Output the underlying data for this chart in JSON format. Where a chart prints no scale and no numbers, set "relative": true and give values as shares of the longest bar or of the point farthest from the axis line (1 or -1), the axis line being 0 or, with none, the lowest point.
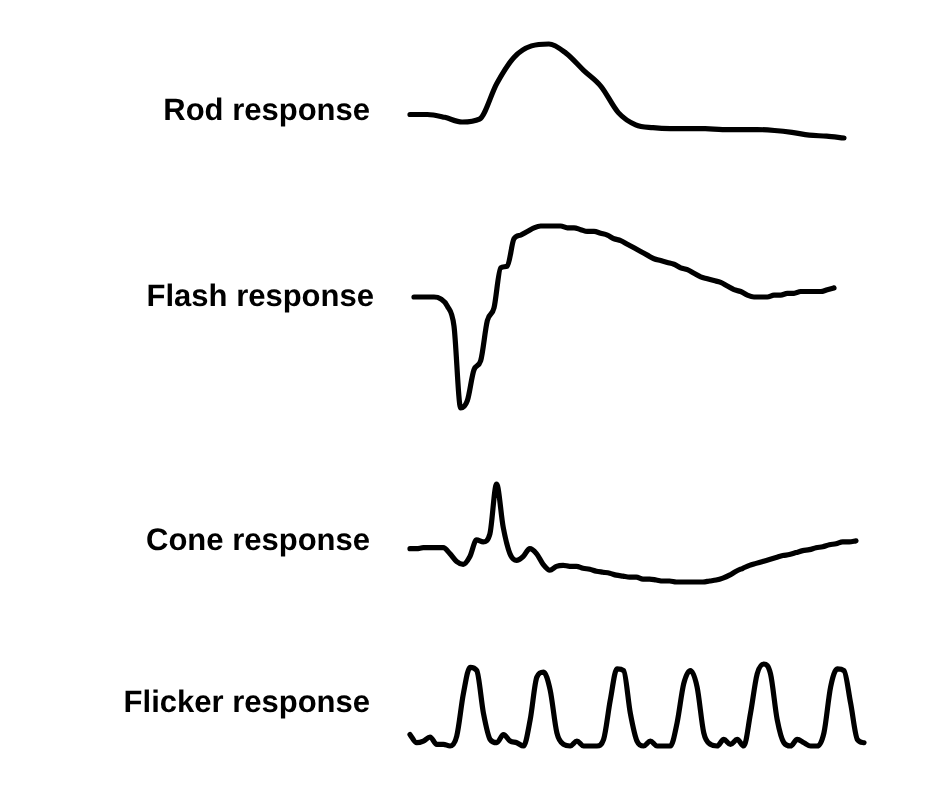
{
  "chart_data": [
    {
      "type": "line",
      "title": "Rod response",
      "relative": true,
      "color": "#000000",
      "categories": [
        null,
        null,
        null,
        null,
        null,
        null,
        null,
        null,
        null,
        null,
        null,
        null,
        null,
        null,
        null,
        null,
        null,
        null,
        null,
        null,
        null,
        null,
        null,
        null,
        null,
        null
      ],
      "values": [
        0.25,
        0.25,
        0.22,
        0.17,
        0.2,
        0.58,
        0.86,
        0.98,
        1,
        0.9,
        0.72,
        0.55,
        0.27,
        0.14,
        0.11,
        0.1,
        0.1,
        0.1,
        0.09,
        0.09,
        0.09,
        0.08,
        0.06,
        0.03,
        0.02,
        0
      ]
    },
    {
      "type": "line",
      "title": "Flash response",
      "relative": true,
      "color": "#000000",
      "categories": [
        null,
        null,
        null,
        null,
        null,
        null,
        null,
        null,
        null,
        null,
        null,
        null,
        null,
        null,
        null,
        null,
        null,
        null,
        null,
        null,
        null,
        null,
        null,
        null,
        null,
        null,
        null,
        null,
        null,
        null,
        null,
        null,
        null,
        null,
        null,
        null,
        null,
        null,
        null,
        null,
        null,
        null,
        null,
        null,
        null,
        null,
        null,
        null,
        null,
        null,
        null,
        null,
        null,
        null,
        null,
        null,
        null,
        null,
        null,
        null,
        null,
        null,
        null,
        null
      ],
      "values": [
        0.61,
        0.61,
        0.61,
        0.61,
        0.6,
        0.56,
        0.45,
        0,
        0.04,
        0.21,
        0.26,
        0.48,
        0.55,
        0.77,
        0.78,
        0.93,
        0.95,
        0.97,
        0.99,
        1,
        1,
        1,
        1,
        0.99,
        0.99,
        0.98,
        0.97,
        0.97,
        0.96,
        0.95,
        0.93,
        0.92,
        0.9,
        0.88,
        0.86,
        0.84,
        0.82,
        0.81,
        0.8,
        0.79,
        0.77,
        0.76,
        0.74,
        0.72,
        0.71,
        0.7,
        0.69,
        0.67,
        0.65,
        0.64,
        0.62,
        0.61,
        0.61,
        0.61,
        0.62,
        0.62,
        0.63,
        0.63,
        0.64,
        0.64,
        0.64,
        0.64,
        0.65,
        0.66
      ]
    },
    {
      "type": "line",
      "title": "Cone response",
      "relative": true,
      "color": "#000000",
      "categories": [
        null,
        null,
        null,
        null,
        null,
        null,
        null,
        null,
        null,
        null,
        null,
        null,
        null,
        null,
        null,
        null,
        null,
        null,
        null,
        null,
        null,
        null,
        null,
        null,
        null,
        null,
        null,
        null,
        null,
        null,
        null,
        null,
        null,
        null,
        null,
        null,
        null,
        null,
        null,
        null,
        null,
        null,
        null,
        null,
        null,
        null,
        null,
        null,
        null,
        null,
        null,
        null,
        null,
        null,
        null,
        null,
        null,
        null,
        null,
        null,
        null,
        null,
        null,
        null,
        null,
        null,
        null,
        null
      ],
      "values": [
        0.34,
        0.34,
        0.35,
        0.35,
        0.35,
        0.35,
        0.29,
        0.21,
        0.18,
        0.26,
        0.43,
        0.41,
        0.49,
        1,
        0.56,
        0.29,
        0.22,
        0.26,
        0.34,
        0.29,
        0.18,
        0.12,
        0.16,
        0.17,
        0.16,
        0.16,
        0.14,
        0.13,
        0.11,
        0.1,
        0.09,
        0.07,
        0.06,
        0.05,
        0.05,
        0.03,
        0.03,
        0.02,
        0.01,
        0.01,
        0,
        0,
        0,
        0,
        0,
        0.01,
        0.02,
        0.04,
        0.07,
        0.11,
        0.14,
        0.17,
        0.19,
        0.21,
        0.23,
        0.25,
        0.27,
        0.28,
        0.3,
        0.32,
        0.33,
        0.35,
        0.36,
        0.38,
        0.39,
        0.41,
        0.41,
        0.42
      ]
    },
    {
      "type": "line",
      "title": "Flicker response",
      "relative": true,
      "color": "#000000",
      "categories": [
        null,
        null,
        null,
        null,
        null,
        null,
        null,
        null,
        null,
        null,
        null,
        null,
        null,
        null,
        null,
        null,
        null,
        null,
        null,
        null,
        null,
        null,
        null,
        null,
        null,
        null,
        null,
        null,
        null,
        null,
        null,
        null,
        null,
        null,
        null,
        null,
        null,
        null,
        null,
        null,
        null,
        null,
        null,
        null,
        null,
        null,
        null,
        null,
        null,
        null,
        null,
        null,
        null,
        null,
        null,
        null,
        null,
        null,
        null,
        null,
        null,
        null,
        null,
        null,
        null,
        null,
        null,
        null,
        null
      ],
      "values": [
        0.14,
        0.04,
        0.06,
        0.11,
        0.02,
        0.02,
        0,
        0.12,
        0.64,
        0.96,
        0.92,
        0.4,
        0.08,
        0.04,
        0.14,
        0.06,
        0.04,
        0,
        0.32,
        0.84,
        0.9,
        0.68,
        0.16,
        0.02,
        0,
        0.06,
        0,
        0,
        0,
        0.08,
        0.56,
        0.94,
        0.92,
        0.4,
        0.06,
        0,
        0.06,
        0,
        0,
        0,
        0.28,
        0.76,
        0.92,
        0.72,
        0.16,
        0.02,
        0,
        0.08,
        0.02,
        0.08,
        0,
        0.4,
        0.88,
        1,
        0.88,
        0.32,
        0.04,
        0,
        0.08,
        0.04,
        0,
        0,
        0.16,
        0.72,
        0.94,
        0.92,
        0.52,
        0.08,
        0.04
      ]
    }
  ]
}
